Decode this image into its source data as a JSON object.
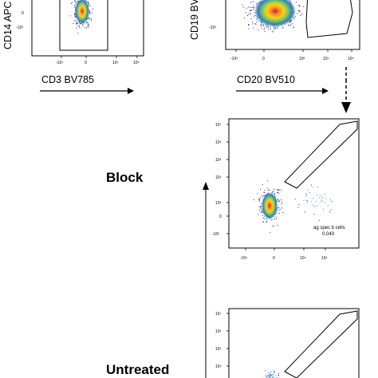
{
  "conditions": {
    "block": "Block",
    "untreated": "Untreated"
  },
  "colors": {
    "density_high": "#d7191c",
    "density_mid": "#ffd400",
    "density_low": "#2b83ba",
    "sparse": "#1f1f8f"
  },
  "chart_data": [
    {
      "type": "scatter",
      "panel": "top-left",
      "xlabel": "CD3 BV785",
      "ylabel": "CD14 APC",
      "x_ticks": [
        "-10⁴",
        "0",
        "10⁴",
        "10⁵"
      ],
      "y_ticks": [
        "0",
        "-10³"
      ],
      "scale": "biexponential",
      "gate": "rectangle"
    },
    {
      "type": "scatter",
      "panel": "top-right",
      "xlabel": "CD20 BV510",
      "ylabel": "CD19 BV",
      "x_ticks": [
        "-10³",
        "0",
        "10³",
        "10⁴",
        "10⁵"
      ],
      "y_ticks": [
        "-10³"
      ],
      "scale": "biexponential",
      "gate": "polygon"
    },
    {
      "type": "scatter",
      "panel": "block",
      "condition": "Block",
      "x_ticks": [
        "-10⁴",
        "0",
        "10⁴",
        "10⁵"
      ],
      "y_ticks": [
        "10⁷",
        "10⁶",
        "10⁵",
        "10⁴",
        "10³",
        "0",
        "-10³"
      ],
      "scale": "biexponential",
      "gate": "polygon",
      "gate_label": "ag spec b cells",
      "gate_value": "0,043"
    },
    {
      "type": "scatter",
      "panel": "untreated",
      "condition": "Untreated",
      "y_ticks": [
        "10⁷",
        "10⁶",
        "10⁵",
        "10⁴"
      ],
      "scale": "biexponential",
      "gate": "polygon"
    }
  ]
}
